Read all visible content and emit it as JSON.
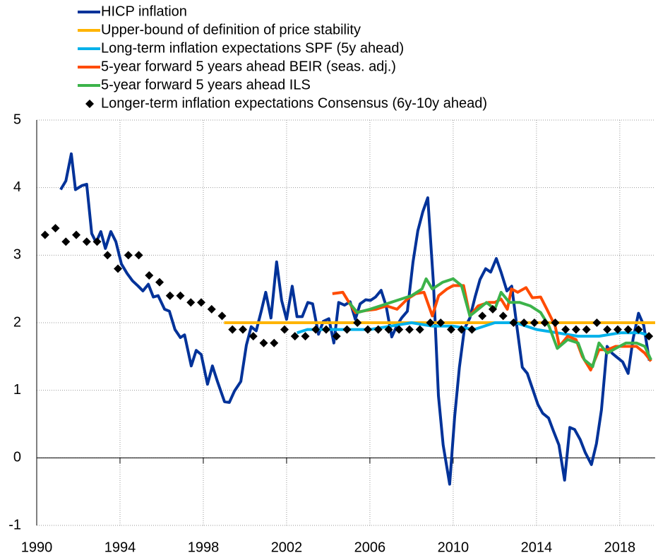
{
  "chart_data": {
    "type": "line",
    "xlim": [
      1990,
      2019.7
    ],
    "ylim": [
      -1,
      5
    ],
    "xticks": [
      1990,
      1994,
      1998,
      2002,
      2006,
      2010,
      2014,
      2018
    ],
    "yticks": [
      -1,
      0,
      1,
      2,
      3,
      4,
      5
    ],
    "grid": true,
    "series": [
      {
        "name": "HICP inflation",
        "color": "#003299",
        "x": [
          1991.15,
          1991.4,
          1991.66,
          1991.86,
          1992.17,
          1992.4,
          1992.64,
          1992.85,
          1993.08,
          1993.3,
          1993.56,
          1993.8,
          1994.07,
          1994.34,
          1994.6,
          1994.88,
          1995.1,
          1995.36,
          1995.6,
          1995.83,
          1996.14,
          1996.37,
          1996.64,
          1996.9,
          1997.1,
          1997.42,
          1997.66,
          1997.9,
          1998.2,
          1998.44,
          1998.68,
          1999.02,
          1999.25,
          1999.5,
          1999.8,
          2000.07,
          2000.3,
          2000.54,
          2000.78,
          2001.0,
          2001.25,
          2001.52,
          2001.76,
          2002.0,
          2002.27,
          2002.5,
          2002.75,
          2003.02,
          2003.25,
          2003.53,
          2003.76,
          2004.03,
          2004.27,
          2004.5,
          2004.78,
          2005.05,
          2005.3,
          2005.53,
          2005.8,
          2006.03,
          2006.27,
          2006.54,
          2006.78,
          2007.05,
          2007.3,
          2007.52,
          2007.8,
          2008.07,
          2008.3,
          2008.54,
          2008.78,
          2009.05,
          2009.29,
          2009.52,
          2009.83,
          2010.07,
          2010.3,
          2010.54,
          2010.8,
          2011.05,
          2011.29,
          2011.56,
          2011.8,
          2012.07,
          2012.3,
          2012.58,
          2012.81,
          2013.05,
          2013.32,
          2013.56,
          2014.07,
          2014.3,
          2014.58,
          2014.81,
          2015.08,
          2015.35,
          2015.6,
          2015.83,
          2016.1,
          2016.34,
          2016.64,
          2016.88,
          2017.12,
          2017.39,
          2017.63,
          2017.86,
          2018.14,
          2018.4,
          2018.64,
          2018.9,
          2019.15,
          2019.42
        ],
        "values": [
          3.97,
          4.1,
          4.5,
          3.97,
          4.03,
          4.05,
          3.32,
          3.19,
          3.35,
          3.1,
          3.35,
          3.2,
          2.87,
          2.73,
          2.62,
          2.54,
          2.47,
          2.57,
          2.38,
          2.4,
          2.2,
          2.17,
          1.9,
          1.78,
          1.82,
          1.36,
          1.59,
          1.53,
          1.09,
          1.36,
          1.13,
          0.83,
          0.82,
          0.99,
          1.13,
          1.67,
          1.94,
          1.88,
          2.17,
          2.45,
          2.07,
          2.9,
          2.33,
          2.05,
          2.54,
          2.09,
          2.09,
          2.3,
          2.28,
          1.83,
          2.02,
          2.06,
          1.7,
          2.3,
          2.26,
          2.31,
          2.05,
          2.28,
          2.34,
          2.33,
          2.38,
          2.48,
          2.25,
          1.79,
          1.96,
          2.07,
          2.17,
          2.9,
          3.36,
          3.64,
          3.85,
          2.59,
          0.92,
          0.19,
          -0.39,
          0.61,
          1.34,
          1.91,
          2.07,
          2.38,
          2.64,
          2.8,
          2.75,
          2.95,
          2.75,
          2.47,
          2.54,
          1.96,
          1.34,
          1.25,
          0.79,
          0.66,
          0.59,
          0.4,
          0.19,
          -0.33,
          0.45,
          0.42,
          0.27,
          0.08,
          -0.1,
          0.21,
          0.71,
          1.65,
          1.55,
          1.49,
          1.42,
          1.25,
          1.76,
          2.14,
          1.96,
          1.44
        ]
      },
      {
        "name": "Upper-bound of definition of price stability",
        "color": "#ffb400",
        "x": [
          1999.0,
          2019.7
        ],
        "values": [
          2,
          2
        ]
      },
      {
        "name": "Long-term inflation expectations SPF (5y ahead)",
        "color": "#00b1ea",
        "x": [
          2002.5,
          2003,
          2004,
          2005,
          2006,
          2007,
          2008,
          2009,
          2010,
          2011,
          2012,
          2013,
          2014,
          2015,
          2016,
          2017,
          2018,
          2019,
          2019.5
        ],
        "values": [
          1.85,
          1.9,
          1.9,
          1.9,
          1.9,
          1.95,
          2.0,
          1.95,
          1.95,
          1.9,
          2.0,
          2.0,
          1.9,
          1.85,
          1.8,
          1.8,
          1.85,
          1.85,
          1.8
        ]
      },
      {
        "name": "5-year forward 5 years ahead BEIR (seas. adj.)",
        "color": "#ff4b00",
        "x": [
          2004.2,
          2004.7,
          2005.0,
          2005.3,
          2005.8,
          2006.3,
          2006.8,
          2007.3,
          2007.8,
          2008.2,
          2008.6,
          2009.0,
          2009.3,
          2009.7,
          2010.0,
          2010.5,
          2010.8,
          2011.2,
          2011.7,
          2012.0,
          2012.3,
          2012.6,
          2012.8,
          2013.1,
          2013.5,
          2013.8,
          2014.2,
          2014.5,
          2014.9,
          2015.1,
          2015.5,
          2015.9,
          2016.2,
          2016.6,
          2017.0,
          2017.4,
          2017.8,
          2018.3,
          2018.8,
          2019.2,
          2019.5
        ],
        "values": [
          2.43,
          2.45,
          2.3,
          2.15,
          2.18,
          2.2,
          2.25,
          2.2,
          2.35,
          2.43,
          2.45,
          2.1,
          2.4,
          2.5,
          2.55,
          2.55,
          2.1,
          2.25,
          2.3,
          2.3,
          2.35,
          2.2,
          2.5,
          2.45,
          2.52,
          2.37,
          2.38,
          2.2,
          1.95,
          1.65,
          1.8,
          1.75,
          1.5,
          1.3,
          1.6,
          1.6,
          1.65,
          1.65,
          1.65,
          1.55,
          1.43
        ]
      },
      {
        "name": "5-year forward 5 years ahead ILS",
        "color": "#3cb34a",
        "x": [
          2005.0,
          2005.4,
          2006.0,
          2006.5,
          2007.0,
          2007.5,
          2008.0,
          2008.5,
          2008.7,
          2009.0,
          2009.5,
          2010.0,
          2010.4,
          2010.8,
          2011.2,
          2011.6,
          2012.0,
          2012.3,
          2012.7,
          2013.2,
          2013.7,
          2014.2,
          2014.6,
          2015.0,
          2015.5,
          2016.0,
          2016.3,
          2016.7,
          2017.0,
          2017.4,
          2017.8,
          2018.3,
          2018.8,
          2019.2,
          2019.5
        ],
        "values": [
          2.3,
          2.15,
          2.2,
          2.25,
          2.3,
          2.35,
          2.4,
          2.5,
          2.65,
          2.5,
          2.6,
          2.65,
          2.55,
          2.1,
          2.2,
          2.3,
          2.2,
          2.45,
          2.3,
          2.3,
          2.25,
          2.15,
          1.95,
          1.62,
          1.75,
          1.7,
          1.45,
          1.35,
          1.7,
          1.55,
          1.62,
          1.7,
          1.7,
          1.65,
          1.45
        ]
      },
      {
        "name": "Longer-term inflation expectations Consensus (6y-10y ahead)",
        "color": "#000000",
        "marker": "diamond",
        "x": [
          1990.4,
          1990.9,
          1991.4,
          1991.9,
          1992.4,
          1992.9,
          1993.4,
          1993.9,
          1994.4,
          1994.9,
          1995.4,
          1995.9,
          1996.4,
          1996.9,
          1997.4,
          1997.9,
          1998.4,
          1998.9,
          1999.4,
          1999.9,
          2000.4,
          2000.9,
          2001.4,
          2001.9,
          2002.4,
          2002.9,
          2003.4,
          2003.9,
          2004.4,
          2004.9,
          2005.4,
          2005.9,
          2006.4,
          2006.9,
          2007.4,
          2007.9,
          2008.4,
          2008.9,
          2009.4,
          2009.9,
          2010.4,
          2010.9,
          2011.4,
          2011.9,
          2012.4,
          2012.9,
          2013.4,
          2013.9,
          2014.4,
          2014.9,
          2015.4,
          2015.9,
          2016.4,
          2016.9,
          2017.4,
          2017.9,
          2018.4,
          2018.9,
          2019.4
        ],
        "values": [
          3.3,
          3.4,
          3.2,
          3.3,
          3.2,
          3.2,
          3.0,
          2.8,
          3.0,
          3.0,
          2.7,
          2.6,
          2.4,
          2.4,
          2.3,
          2.3,
          2.2,
          2.1,
          1.9,
          1.9,
          1.8,
          1.7,
          1.7,
          1.9,
          1.8,
          1.8,
          1.9,
          1.9,
          1.8,
          1.9,
          2.0,
          1.9,
          1.9,
          1.9,
          1.9,
          1.9,
          1.9,
          2.0,
          2.0,
          1.9,
          1.9,
          1.9,
          2.1,
          2.2,
          2.1,
          2.0,
          2.0,
          2.0,
          2.0,
          2.0,
          1.9,
          1.9,
          1.9,
          2.0,
          1.9,
          1.9,
          1.9,
          1.9,
          1.8
        ]
      }
    ]
  }
}
